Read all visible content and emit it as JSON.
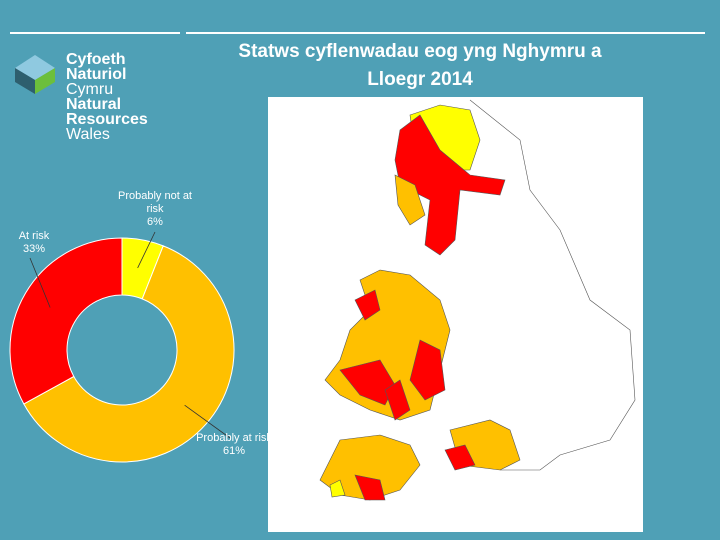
{
  "logo": {
    "lines": [
      "Cyfoeth",
      "Naturiol",
      "Cymru",
      "Natural",
      "Resources",
      "Wales"
    ]
  },
  "chart_data": {
    "type": "pie",
    "donut": true,
    "title": "Statws cyflenwadau eog yng Nghymru a Lloegr 2014",
    "categories": [
      "Probably not at risk",
      "Probably at risk",
      "At risk"
    ],
    "values": [
      6,
      61,
      33
    ],
    "value_labels": [
      "6%",
      "61%",
      "33%"
    ],
    "colors": [
      "#ffff00",
      "#ffc000",
      "#ff0000"
    ]
  }
}
